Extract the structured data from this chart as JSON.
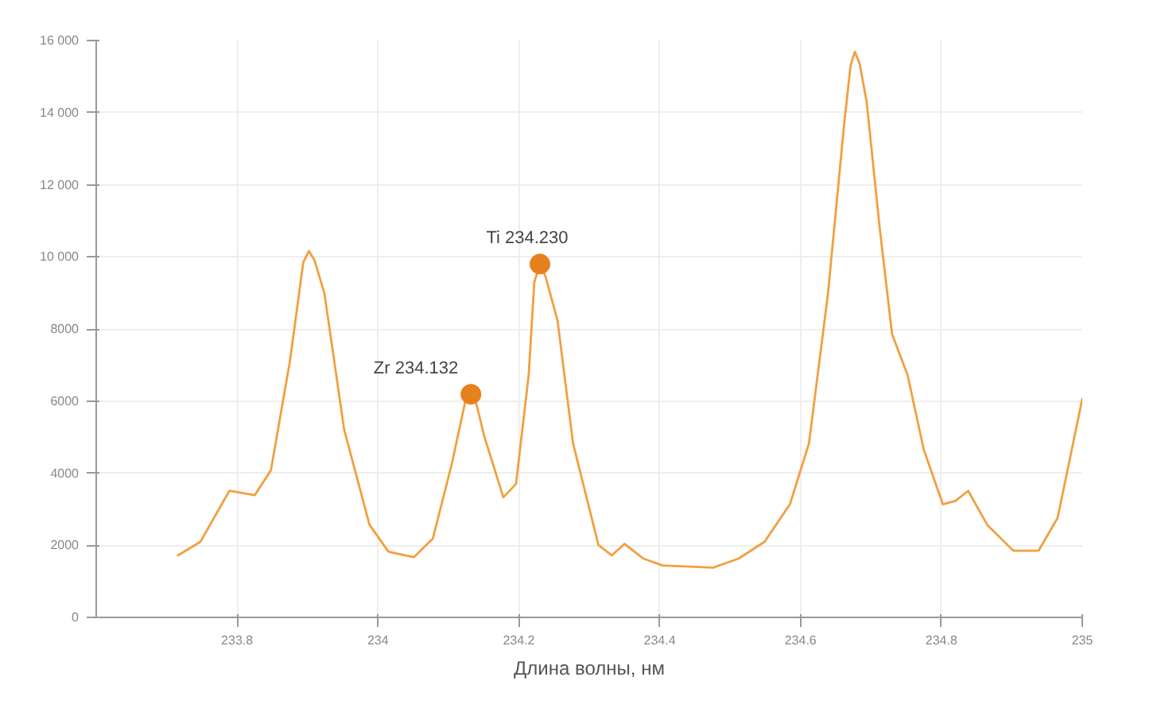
{
  "chart_data": {
    "type": "line",
    "xlabel": "Длина волны, нм",
    "xlim": [
      233.6,
      235
    ],
    "ylim": [
      0,
      16000
    ],
    "xticks": [
      233.8,
      234,
      234.2,
      234.4,
      234.6,
      234.8,
      235
    ],
    "yticks": [
      0,
      2000,
      4000,
      6000,
      8000,
      {
        "value": 10000,
        "label": "10 000"
      },
      {
        "value": 12000,
        "label": "12 000"
      },
      {
        "value": 14000,
        "label": "14 000"
      },
      {
        "value": 16000,
        "label": "16 000"
      }
    ],
    "grid": true,
    "marker": "none",
    "line_style": "solid",
    "series": [
      {
        "color": "#f0a040",
        "x": [
          233.716,
          233.748,
          233.789,
          233.825,
          233.848,
          233.875,
          233.894,
          233.902,
          233.91,
          233.924,
          233.952,
          233.988,
          234.015,
          234.051,
          234.078,
          234.105,
          234.124,
          234.132,
          234.14,
          234.151,
          234.178,
          234.196,
          234.214,
          234.222,
          234.23,
          234.238,
          234.255,
          234.277,
          234.313,
          234.332,
          234.35,
          234.377,
          234.404,
          234.476,
          234.512,
          234.549,
          234.585,
          234.612,
          234.639,
          234.662,
          234.671,
          234.677,
          234.684,
          234.694,
          234.712,
          234.73,
          234.752,
          234.775,
          234.802,
          234.82,
          234.838,
          234.865,
          234.902,
          234.938,
          234.965,
          235.0
        ],
        "values": [
          1720,
          2100,
          3510,
          3390,
          4080,
          7100,
          9850,
          10160,
          9900,
          8990,
          5210,
          2570,
          1820,
          1670,
          2190,
          4270,
          5990,
          6190,
          5900,
          5020,
          3330,
          3700,
          6720,
          9300,
          9800,
          9450,
          8230,
          4830,
          2010,
          1720,
          2040,
          1630,
          1440,
          1380,
          1630,
          2100,
          3140,
          4830,
          8990,
          13700,
          15300,
          15690,
          15350,
          14280,
          10870,
          7850,
          6720,
          4650,
          3140,
          3230,
          3510,
          2570,
          1850,
          1850,
          2760,
          6060
        ]
      },
      {
        "type": "scatter",
        "marker": "circle",
        "color": "#e8801e",
        "x": [
          234.132,
          234.23
        ],
        "values": [
          6190,
          9800
        ]
      }
    ],
    "annotations": [
      {
        "text": "Zr 234.132",
        "x": 234.132,
        "y": 6190
      },
      {
        "text": "Ti 234.230",
        "x": 234.23,
        "y": 9800
      }
    ]
  }
}
